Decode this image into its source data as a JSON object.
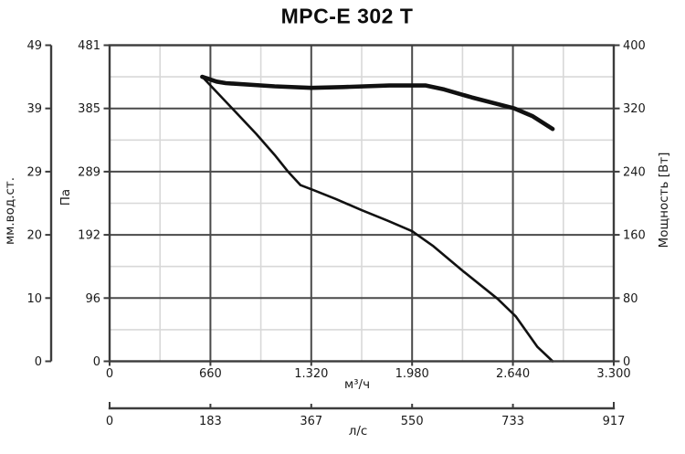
{
  "title": "MPC-E 302 T",
  "chart_data": {
    "type": "line",
    "title": "MPC-E 302 T",
    "x_axis": {
      "label": "м³/ч",
      "range": [
        0,
        3300
      ],
      "ticks": [
        0,
        660,
        1320,
        1980,
        2640,
        3300
      ],
      "tick_labels": [
        "0",
        "660",
        "1.320",
        "1.980",
        "2.640",
        "3.300"
      ]
    },
    "x_axis_secondary": {
      "label": "л/с",
      "ticks": [
        0,
        183,
        367,
        550,
        733,
        917
      ],
      "tick_labels": [
        "0",
        "183",
        "367",
        "550",
        "733",
        "917"
      ]
    },
    "y_axis_pressure_pa": {
      "label": "Па",
      "range": [
        0,
        481
      ],
      "ticks": [
        0,
        96,
        192,
        289,
        385,
        481
      ],
      "tick_labels": [
        "0",
        "96",
        "192",
        "289",
        "385",
        "481"
      ]
    },
    "y_axis_pressure_mm": {
      "label": "мм.вод.ст.",
      "ticks": [
        0,
        10,
        20,
        29,
        39,
        49
      ],
      "tick_labels": [
        "0",
        "10",
        "20",
        "29",
        "39",
        "49"
      ]
    },
    "y_axis_power": {
      "label": "Мощность [Вт]",
      "range": [
        0,
        400
      ],
      "ticks": [
        0,
        80,
        160,
        240,
        320,
        400
      ],
      "tick_labels": [
        "0",
        "80",
        "160",
        "240",
        "320",
        "400"
      ]
    },
    "grid": {
      "major": true,
      "minor": true
    },
    "legend": "none",
    "series": [
      {
        "name": "pressure-curve",
        "y_axis": "pressure_pa",
        "unit": "Па",
        "stroke_width": 2.6,
        "points": [
          [
            606,
            433
          ],
          [
            680,
            415
          ],
          [
            810,
            383
          ],
          [
            960,
            346
          ],
          [
            1080,
            314
          ],
          [
            1170,
            288
          ],
          [
            1250,
            268
          ],
          [
            1330,
            261
          ],
          [
            1480,
            247
          ],
          [
            1650,
            230
          ],
          [
            1820,
            214
          ],
          [
            1980,
            198
          ],
          [
            2120,
            175
          ],
          [
            2320,
            136
          ],
          [
            2540,
            95
          ],
          [
            2660,
            68
          ],
          [
            2800,
            22
          ],
          [
            2900,
            0
          ]
        ]
      },
      {
        "name": "power-curve",
        "y_axis": "power",
        "unit": "Вт",
        "stroke_width": 4.6,
        "points": [
          [
            606,
            360
          ],
          [
            700,
            354
          ],
          [
            760,
            352
          ],
          [
            1080,
            348
          ],
          [
            1320,
            346
          ],
          [
            1530,
            347
          ],
          [
            1830,
            349
          ],
          [
            2070,
            349
          ],
          [
            2190,
            344
          ],
          [
            2370,
            334
          ],
          [
            2650,
            320
          ],
          [
            2770,
            310
          ],
          [
            2900,
            294
          ]
        ]
      }
    ],
    "colors": {
      "curve": "#111111",
      "major_grid": "#4a4a4a",
      "minor_grid": "#d8d8d8",
      "border": "#3c3c3c",
      "text": "#1a1a1a"
    }
  }
}
